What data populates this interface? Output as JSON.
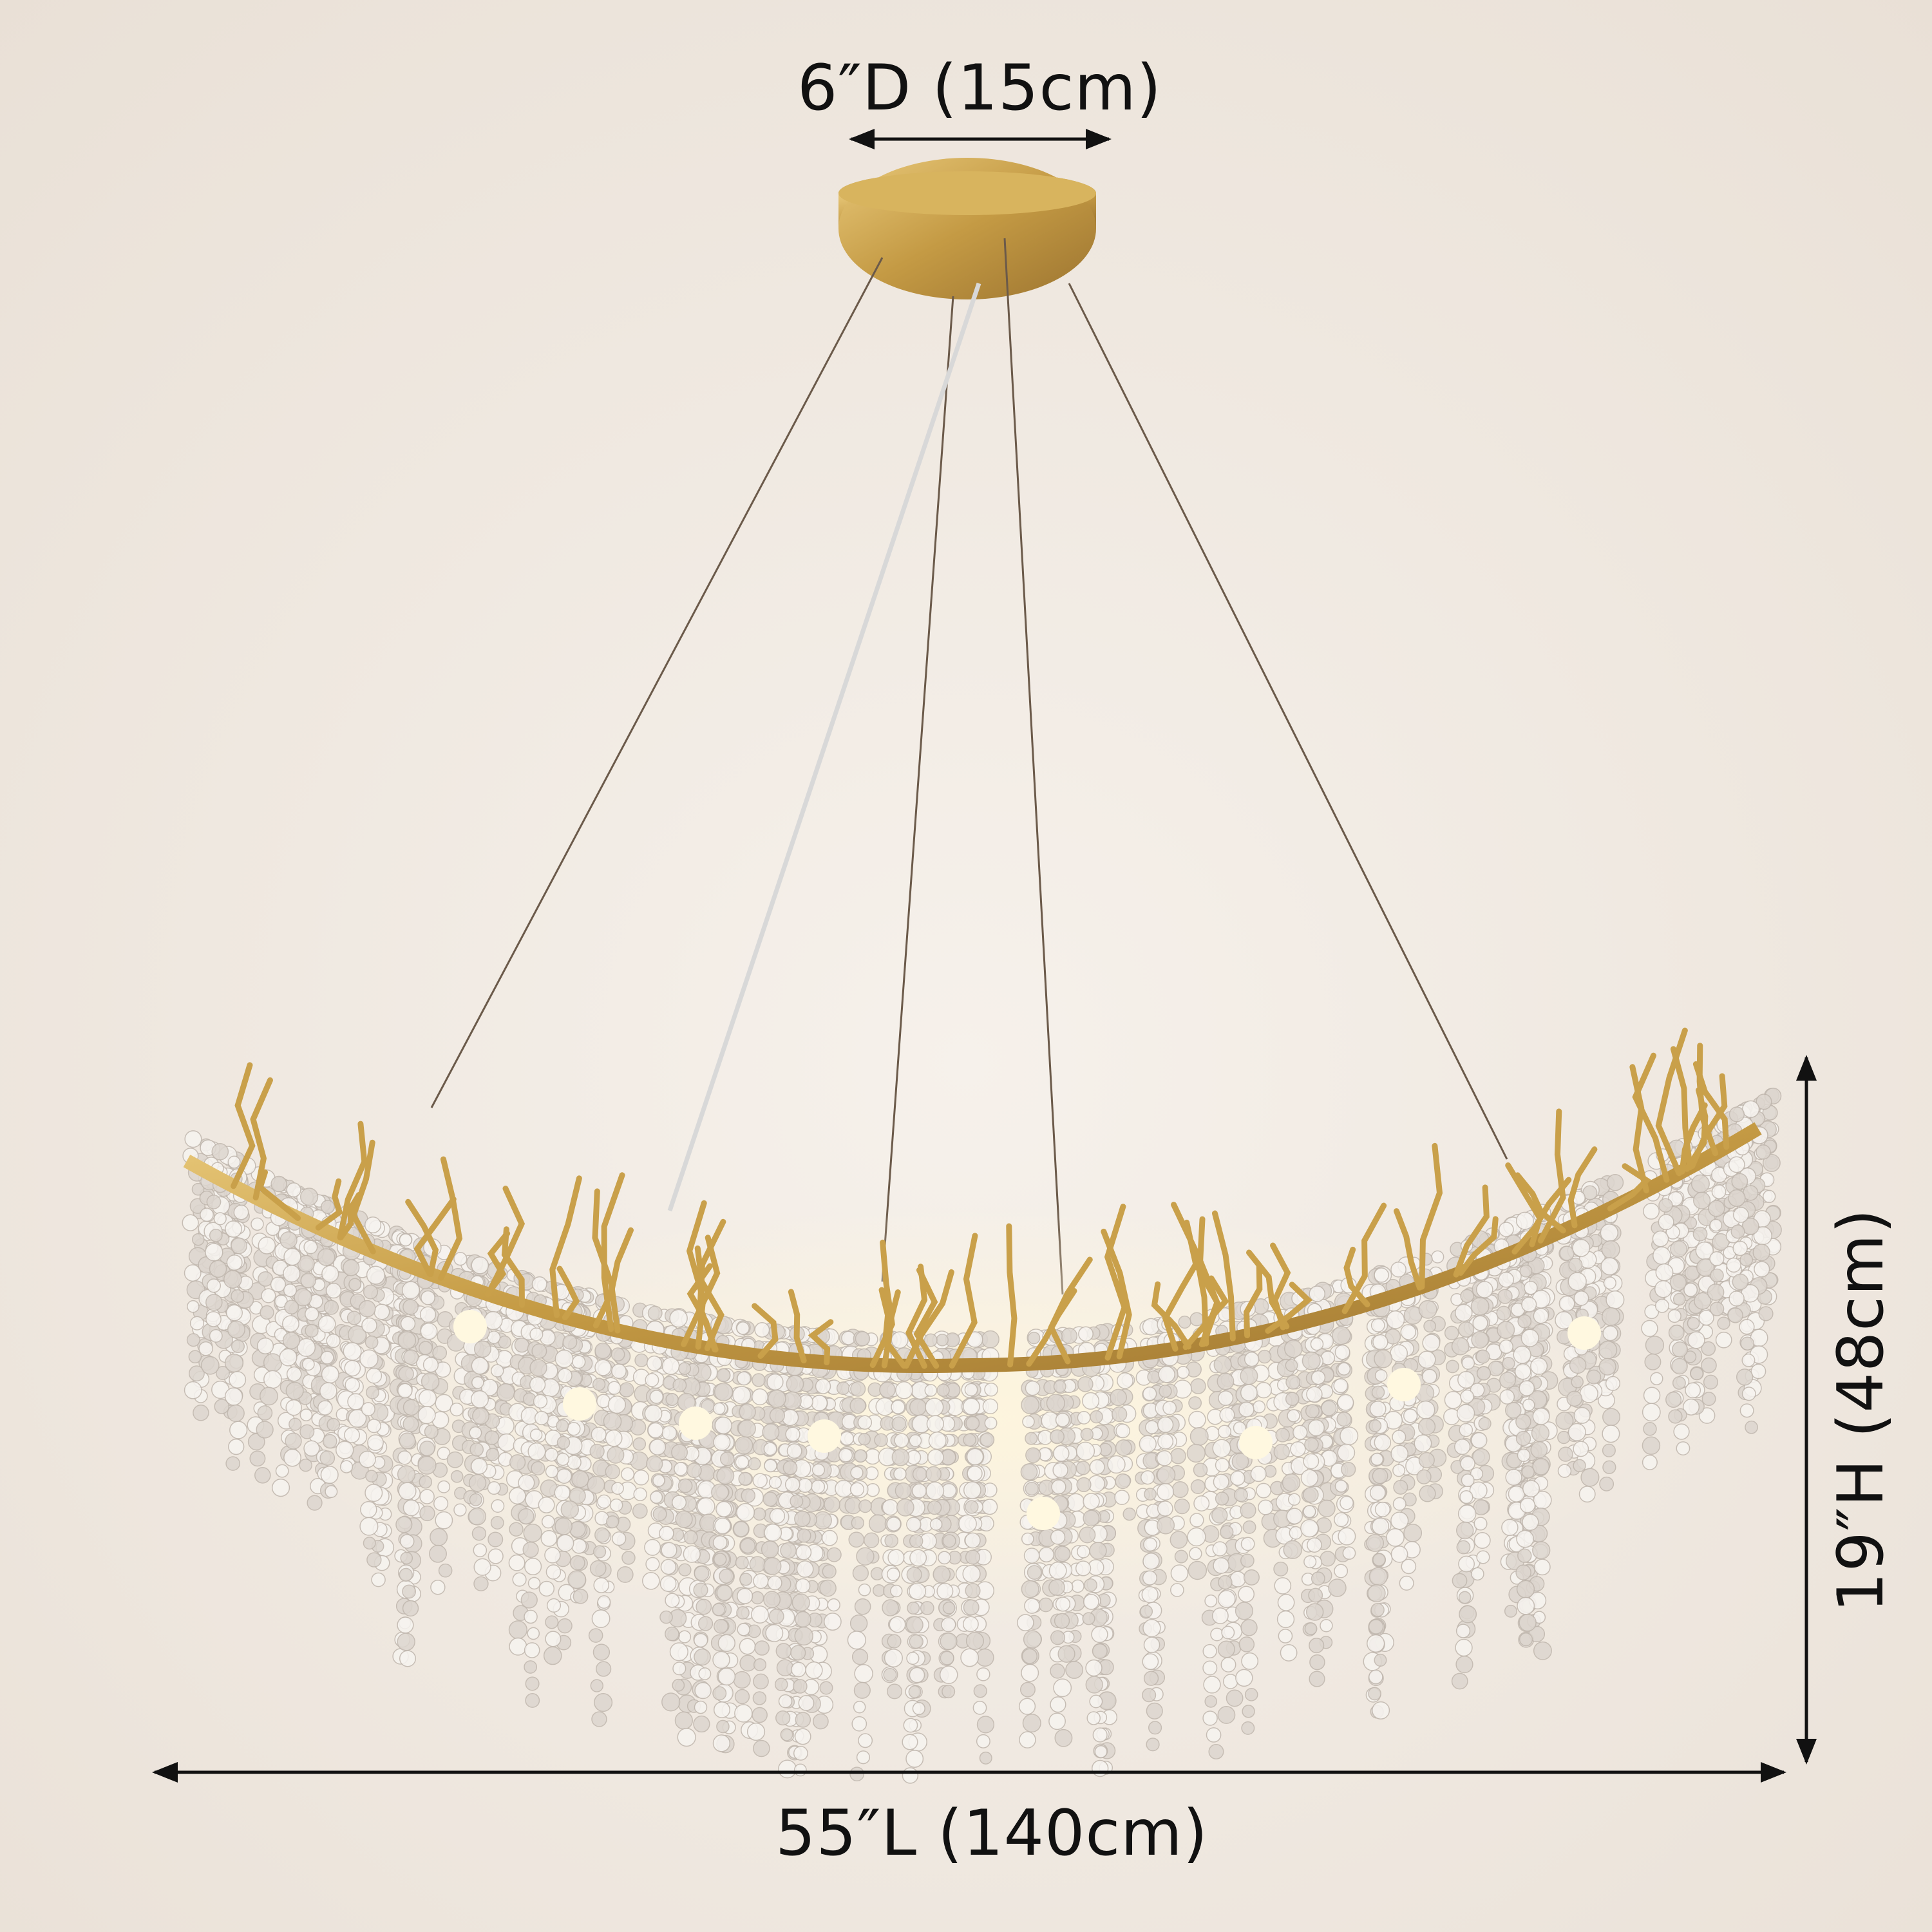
{
  "dimensions": {
    "diameter_canopy": "6″D (15cm)",
    "length": "55″L (140cm)",
    "height": "19″H (48cm)"
  },
  "colors": {
    "background": "#f1ebe4",
    "gold": "#c9a04a",
    "crystal": "#f4f1ee",
    "annotation": "#111111"
  }
}
